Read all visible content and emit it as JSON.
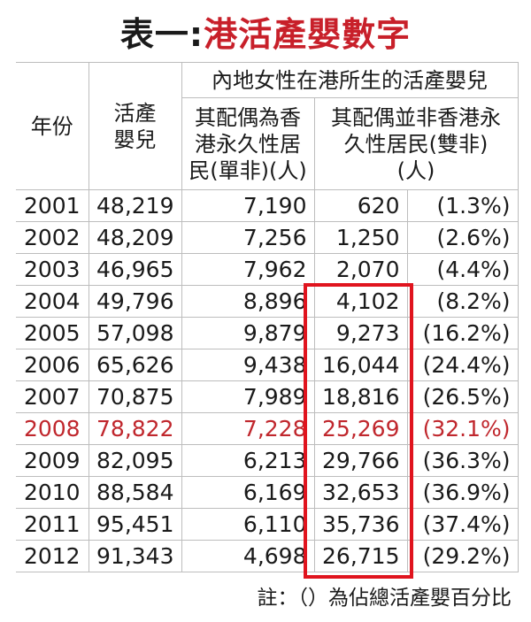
{
  "title": {
    "prefix": "表一:",
    "main": "港活產嬰數字"
  },
  "table": {
    "headers": {
      "year": "年份",
      "births": "活產嬰兒",
      "group": "內地女性在港所生的活產嬰兒",
      "single": "其配偶為香港永久性居民(單非)(人)",
      "double": "其配偶並非香港永久性居民(雙非)(人)"
    },
    "rows": [
      [
        "2001",
        "48,219",
        "7,190",
        "620",
        "(1.3%)"
      ],
      [
        "2002",
        "48,209",
        "7,256",
        "1,250",
        "(2.6%)"
      ],
      [
        "2003",
        "46,965",
        "7,962",
        "2,070",
        "(4.4%)"
      ],
      [
        "2004",
        "49,796",
        "8,896",
        "4,102",
        "(8.2%)"
      ],
      [
        "2005",
        "57,098",
        "9,879",
        "9,273",
        "(16.2%)"
      ],
      [
        "2006",
        "65,626",
        "9,438",
        "16,044",
        "(24.4%)"
      ],
      [
        "2007",
        "70,875",
        "7,989",
        "18,816",
        "(26.5%)"
      ],
      [
        "2008",
        "78,822",
        "7,228",
        "25,269",
        "(32.1%)"
      ],
      [
        "2009",
        "82,095",
        "6,213",
        "29,766",
        "(36.3%)"
      ],
      [
        "2010",
        "88,584",
        "6,169",
        "32,653",
        "(36.9%)"
      ],
      [
        "2011",
        "95,451",
        "6,110",
        "35,736",
        "(37.4%)"
      ],
      [
        "2012",
        "91,343",
        "4,698",
        "26,715",
        "(29.2%)"
      ]
    ]
  },
  "note": "註：（）為佔總活產嬰百分比"
}
